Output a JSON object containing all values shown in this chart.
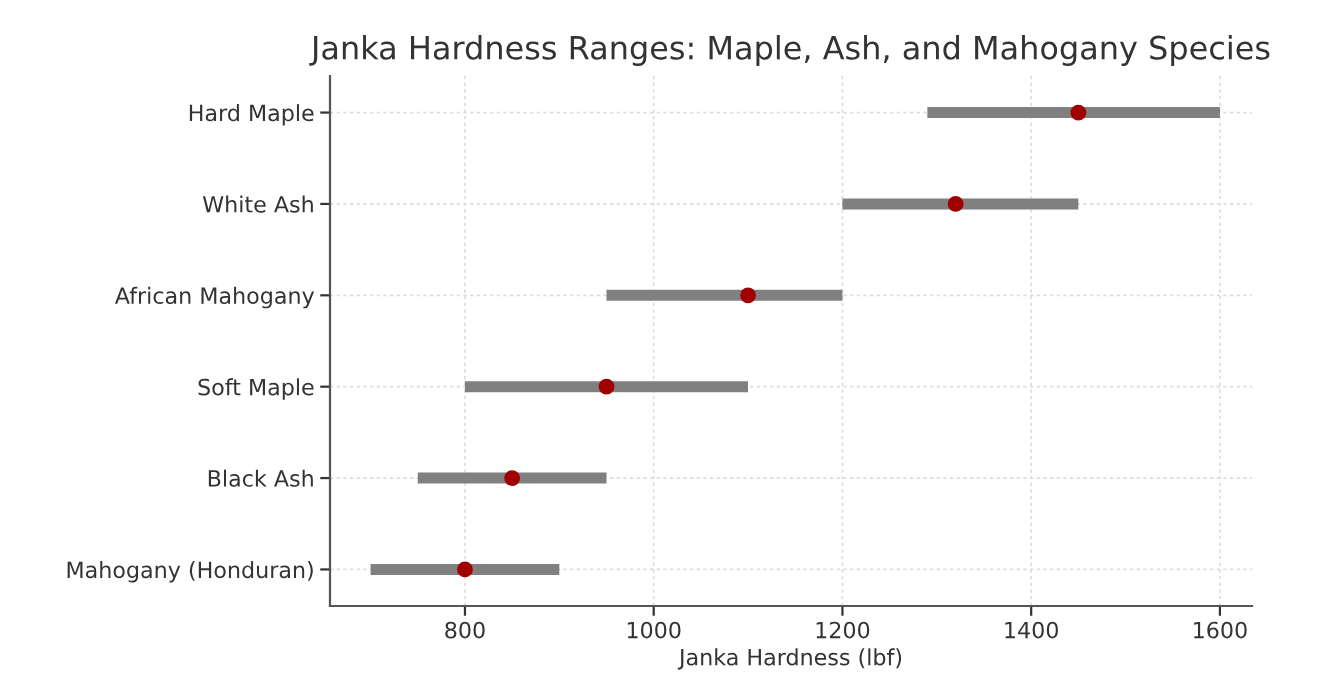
{
  "chart_data": {
    "type": "bar",
    "orientation": "horizontal",
    "title": "Janka Hardness Ranges: Maple, Ash, and Mahogany Species",
    "xlabel": "Janka Hardness (lbf)",
    "categories": [
      "Hard Maple",
      "White Ash",
      "African Mahogany",
      "Soft Maple",
      "Black Ash",
      "Mahogany (Honduran)"
    ],
    "series": [
      {
        "color": "#808080",
        "base": [
          1290,
          1200,
          950,
          800,
          750,
          700
        ],
        "values": [
          310,
          250,
          250,
          300,
          200,
          200
        ]
      },
      {
        "type": "scatter",
        "color": "#a00000",
        "values": [
          1450,
          1320,
          1100,
          950,
          850,
          800
        ]
      }
    ],
    "xlim": [
      657,
      1634
    ],
    "xticks": [
      800,
      1000,
      1200,
      1400,
      1600
    ],
    "grid": true,
    "marker": "circle"
  }
}
